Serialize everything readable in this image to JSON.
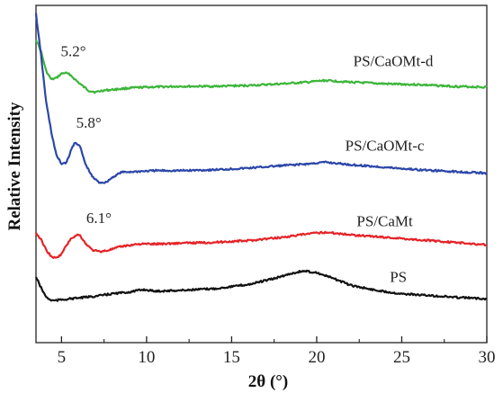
{
  "chart_data": {
    "type": "line",
    "xlabel": "2θ (°)",
    "ylabel": "Relative Intensity",
    "xlim": [
      3.5,
      30
    ],
    "xticks": [
      "5",
      "10",
      "15",
      "20",
      "25",
      "30"
    ],
    "xtick_values": [
      5,
      10,
      15,
      20,
      25,
      30
    ],
    "yticks_shown": false,
    "grid": false,
    "series": [
      {
        "name": "PS/CaOMt-d",
        "color": "#3db53a",
        "x": [
          3.5,
          3.8,
          4.1,
          4.4,
          4.7,
          5.0,
          5.2,
          5.5,
          5.8,
          6.2,
          6.6,
          7.0,
          7.4,
          8.0,
          9.0,
          10.0,
          12.0,
          14.0,
          16.0,
          18.0,
          19.5,
          20.5,
          22.0,
          24.0,
          26.0,
          28.0,
          30.0
        ],
        "y": [
          40,
          55,
          78,
          88,
          86,
          81,
          80,
          82,
          88,
          95,
          101,
          103,
          101,
          100,
          98,
          97,
          96,
          96,
          95,
          93,
          91,
          89,
          91,
          93,
          94,
          96,
          97
        ]
      },
      {
        "name": "PS/CaOMt-c",
        "color": "#2b47a8",
        "x": [
          3.5,
          3.8,
          4.1,
          4.4,
          4.7,
          5.0,
          5.3,
          5.6,
          5.8,
          6.1,
          6.4,
          6.8,
          7.2,
          7.6,
          8.0,
          8.5,
          9.5,
          10.5,
          12.0,
          14.0,
          16.0,
          18.0,
          19.5,
          20.5,
          22.0,
          24.0,
          26.0,
          28.0,
          30.0
        ],
        "y": [
          10,
          60,
          115,
          150,
          178,
          188,
          186,
          170,
          162,
          168,
          188,
          203,
          210,
          210,
          204,
          198,
          197,
          196,
          196,
          195,
          193,
          190,
          188,
          186,
          189,
          192,
          195,
          197,
          199
        ]
      },
      {
        "name": "PS/CaMt",
        "color": "#e52327",
        "x": [
          3.5,
          3.8,
          4.1,
          4.4,
          4.7,
          5.0,
          5.3,
          5.6,
          5.9,
          6.1,
          6.4,
          6.8,
          7.2,
          7.6,
          8.0,
          8.5,
          9.5,
          10.5,
          12.0,
          14.0,
          16.0,
          18.0,
          19.5,
          20.5,
          22.0,
          24.0,
          26.0,
          28.0,
          30.0
        ],
        "y": [
          270,
          278,
          290,
          298,
          300,
          295,
          284,
          276,
          272,
          273,
          282,
          290,
          292,
          291,
          289,
          286,
          283,
          283,
          282,
          281,
          279,
          275,
          271,
          269,
          272,
          275,
          278,
          281,
          284
        ]
      },
      {
        "name": "PS",
        "color": "#111111",
        "x": [
          3.5,
          3.8,
          4.1,
          4.4,
          4.7,
          5.0,
          5.5,
          6.0,
          7.0,
          8.0,
          9.0,
          9.8,
          10.5,
          12.0,
          14.0,
          16.0,
          17.5,
          18.5,
          19.2,
          20.0,
          21.0,
          22.0,
          23.5,
          25.0,
          26.5,
          28.0,
          30.0
        ],
        "y": [
          322,
          335,
          346,
          350,
          350,
          349,
          348,
          347,
          345,
          342,
          340,
          337,
          339,
          338,
          336,
          331,
          324,
          318,
          315,
          317,
          324,
          332,
          338,
          342,
          344,
          346,
          348
        ]
      }
    ],
    "series_labels": [
      {
        "text": "PS/CaOMt-d",
        "x": 24.5,
        "y": 72
      },
      {
        "text": "PS/CaOMt-c",
        "x": 24.0,
        "y": 172
      },
      {
        "text": "PS/CaMt",
        "x": 24.0,
        "y": 262
      },
      {
        "text": "PS",
        "x": 24.8,
        "y": 328
      }
    ],
    "annotations": [
      {
        "text": "5.2°",
        "x": 5.7,
        "y": 60
      },
      {
        "text": "5.8°",
        "x": 6.6,
        "y": 145
      },
      {
        "text": "6.1°",
        "x": 7.2,
        "y": 258
      }
    ]
  }
}
